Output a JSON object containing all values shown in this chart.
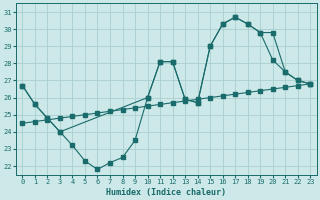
{
  "xlabel": "Humidex (Indice chaleur)",
  "bg_color": "#cce8e8",
  "grid_color": "#aacfcf",
  "line_color": "#1a6b6b",
  "xlim": [
    -0.5,
    23.5
  ],
  "ylim": [
    21.5,
    31.5
  ],
  "xticks": [
    0,
    1,
    2,
    3,
    4,
    5,
    6,
    7,
    8,
    9,
    10,
    11,
    12,
    13,
    14,
    15,
    16,
    17,
    18,
    19,
    20,
    21,
    22,
    23
  ],
  "yticks": [
    22,
    23,
    24,
    25,
    26,
    27,
    28,
    29,
    30,
    31
  ],
  "line1_x": [
    0,
    1,
    2,
    3,
    4,
    5,
    6,
    7,
    8,
    9,
    10,
    11,
    12,
    13,
    14,
    15,
    16,
    17,
    18,
    19,
    20,
    21,
    22,
    23
  ],
  "line1_y": [
    26.7,
    25.6,
    24.8,
    24.0,
    23.2,
    22.3,
    21.8,
    22.2,
    22.5,
    23.5,
    26.0,
    28.1,
    28.1,
    25.9,
    25.7,
    29.0,
    30.3,
    30.7,
    30.3,
    29.8,
    28.2,
    27.5,
    27.0,
    26.8
  ],
  "line2_x": [
    0,
    1,
    2,
    3,
    4,
    5,
    6,
    7,
    8,
    9,
    10,
    11,
    12,
    13,
    14,
    15,
    16,
    17,
    18,
    19,
    20,
    21,
    22,
    23
  ],
  "line2_y": [
    24.5,
    24.6,
    24.7,
    24.8,
    24.9,
    25.0,
    25.1,
    25.2,
    25.3,
    25.4,
    25.5,
    25.6,
    25.7,
    25.8,
    25.9,
    26.0,
    26.1,
    26.2,
    26.3,
    26.4,
    26.5,
    26.6,
    26.7,
    26.8
  ],
  "line3_x": [
    0,
    1,
    2,
    3,
    10,
    11,
    12,
    13,
    14,
    15,
    16,
    17,
    18,
    19,
    20,
    21,
    22,
    23
  ],
  "line3_y": [
    26.7,
    25.6,
    24.8,
    24.0,
    26.0,
    28.1,
    28.1,
    25.9,
    25.7,
    29.0,
    30.3,
    30.7,
    30.3,
    29.8,
    29.8,
    27.5,
    27.0,
    26.8
  ]
}
